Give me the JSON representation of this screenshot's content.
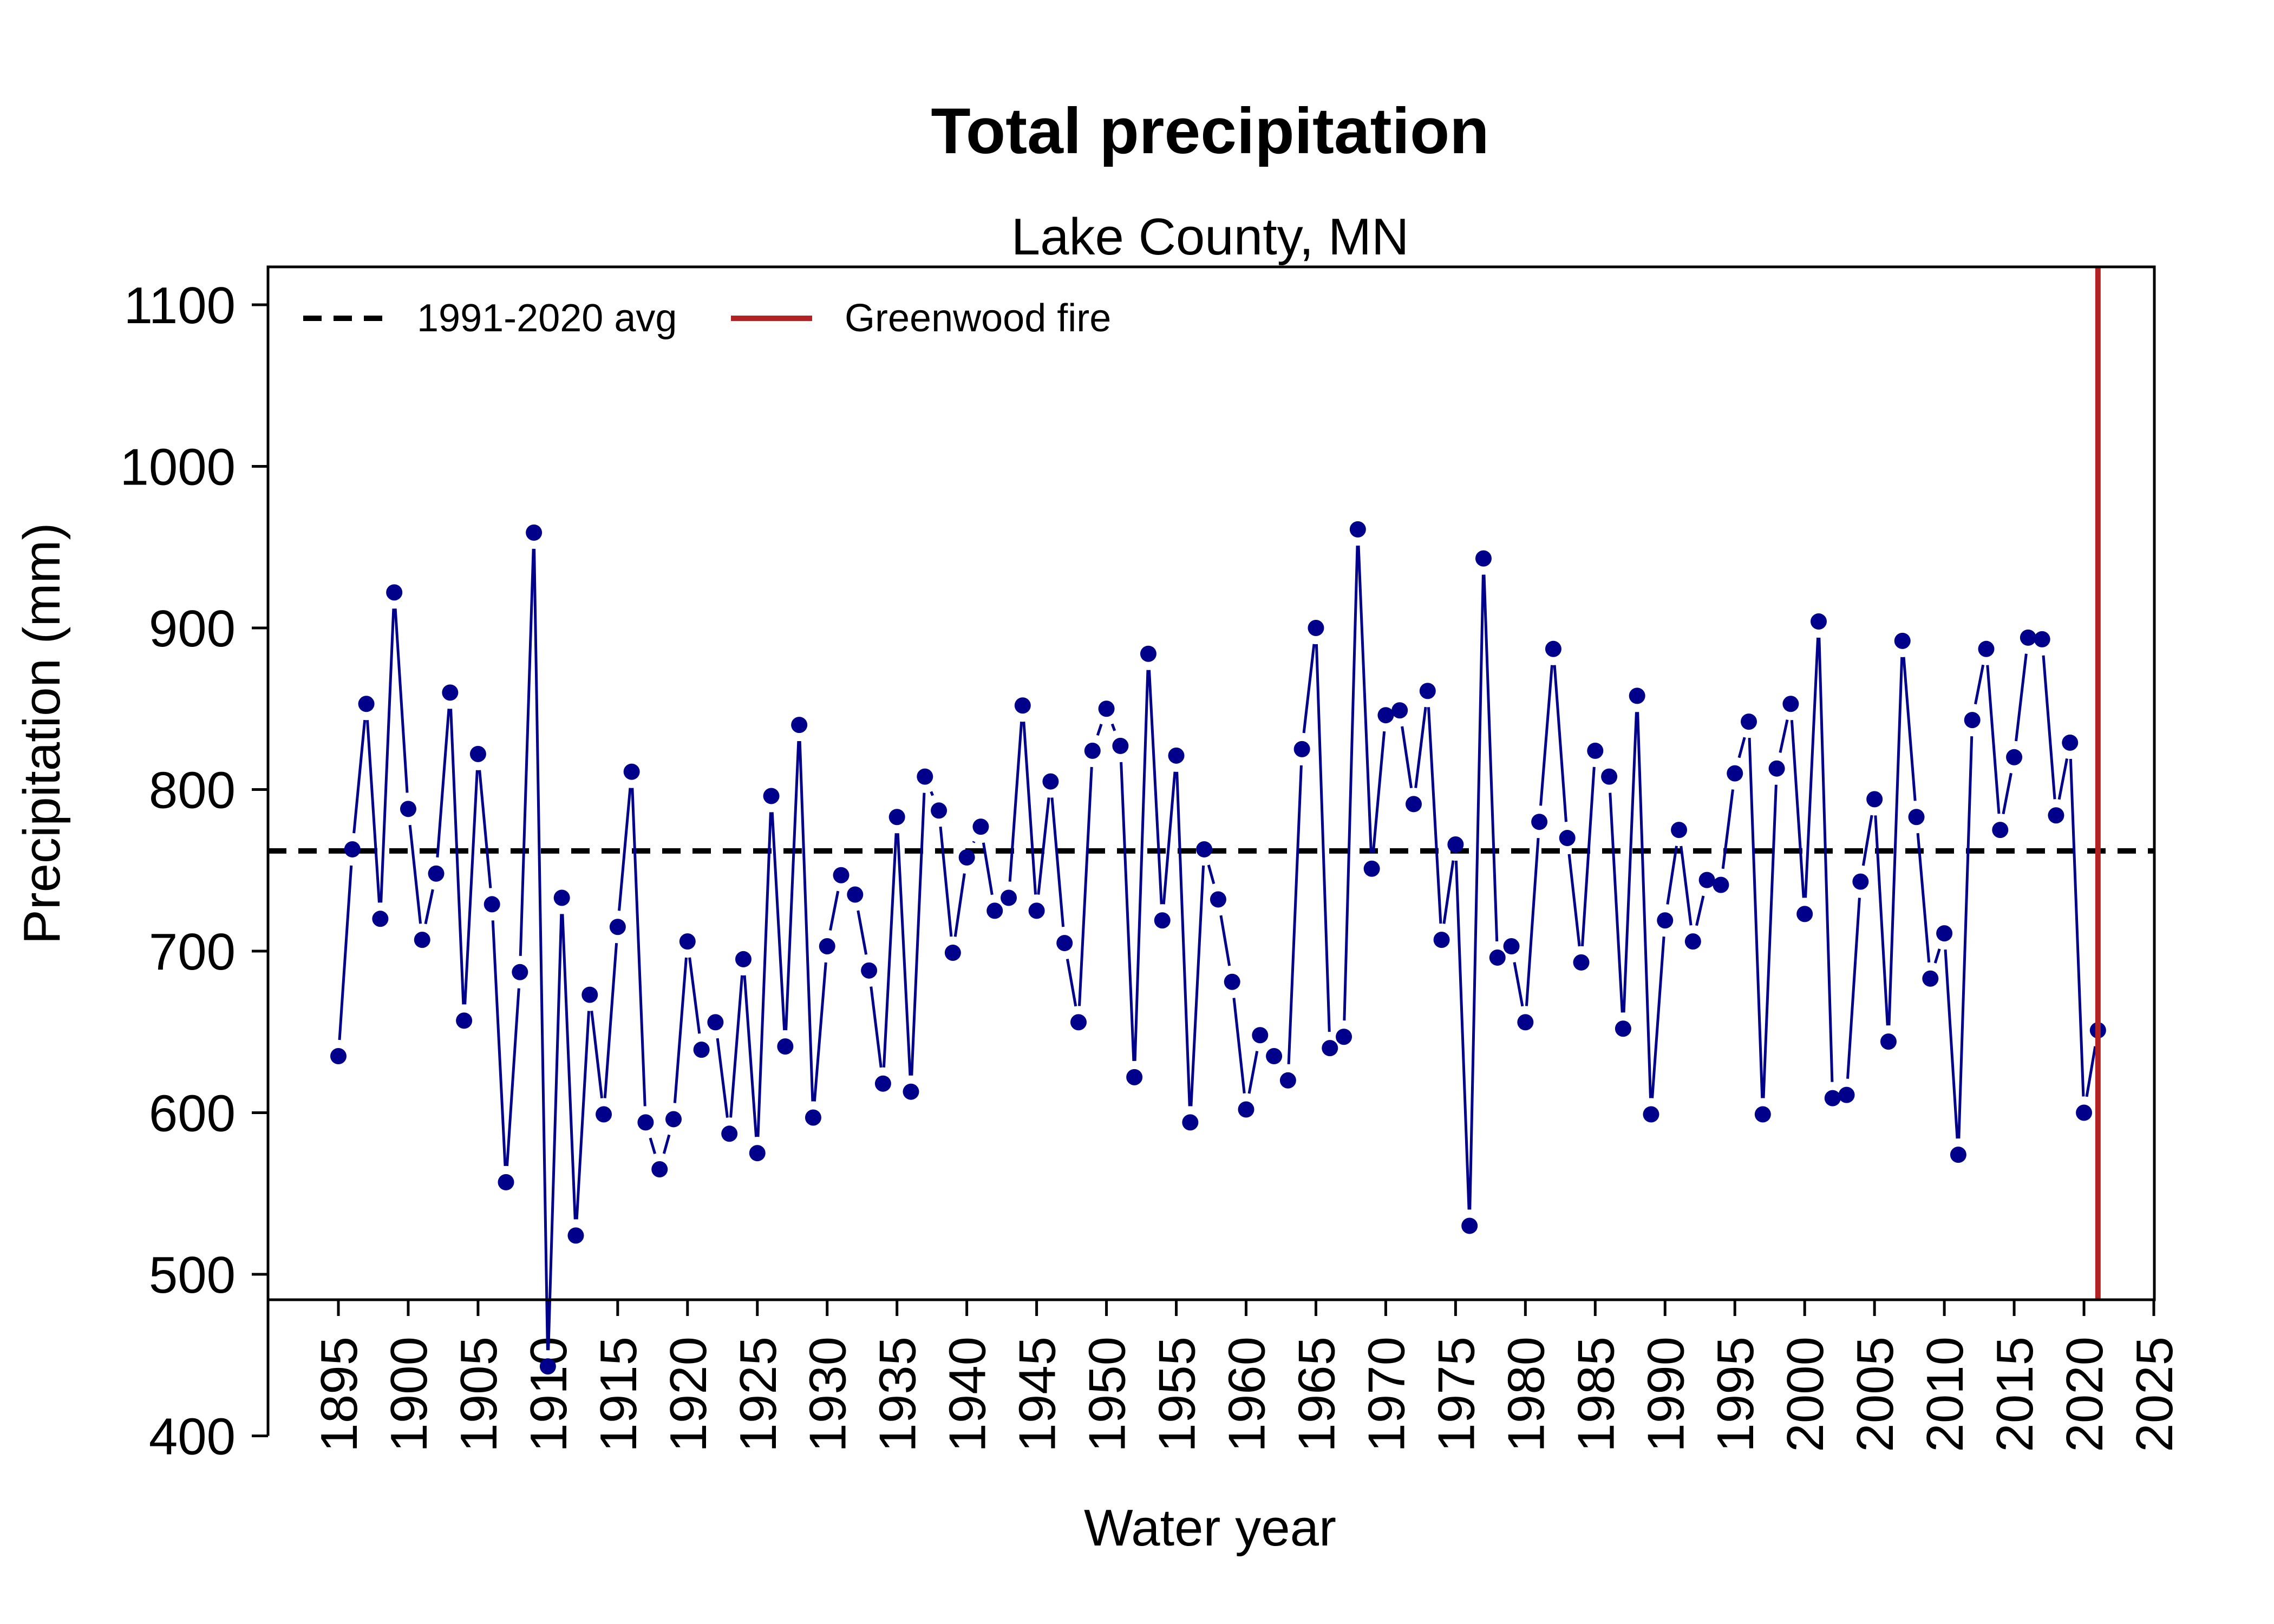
{
  "chart_data": {
    "type": "line",
    "title": "Total precipitation",
    "subtitle": "Lake County, MN",
    "xlabel": "Water year",
    "ylabel": "Precipitation (mm)",
    "xlim": [
      1890,
      2025
    ],
    "ylim": [
      373,
      1128
    ],
    "x_ticks": [
      1895,
      1900,
      1905,
      1910,
      1915,
      1920,
      1925,
      1930,
      1935,
      1940,
      1945,
      1950,
      1955,
      1960,
      1965,
      1970,
      1975,
      1980,
      1985,
      1990,
      1995,
      2000,
      2005,
      2010,
      2015,
      2020,
      2025
    ],
    "y_ticks": [
      400,
      500,
      600,
      700,
      800,
      900,
      1000,
      1100
    ],
    "grid": false,
    "legend_position": "top-left",
    "series": [
      {
        "name": "Precipitation",
        "color": "#00008B",
        "x": [
          1895,
          1896,
          1897,
          1898,
          1899,
          1900,
          1901,
          1902,
          1903,
          1904,
          1905,
          1906,
          1907,
          1908,
          1909,
          1910,
          1911,
          1912,
          1913,
          1914,
          1915,
          1916,
          1917,
          1918,
          1919,
          1920,
          1921,
          1922,
          1923,
          1924,
          1925,
          1926,
          1927,
          1928,
          1929,
          1930,
          1931,
          1932,
          1933,
          1934,
          1935,
          1936,
          1937,
          1938,
          1939,
          1940,
          1941,
          1942,
          1943,
          1944,
          1945,
          1946,
          1947,
          1948,
          1949,
          1950,
          1951,
          1952,
          1953,
          1954,
          1955,
          1956,
          1957,
          1958,
          1959,
          1960,
          1961,
          1962,
          1963,
          1964,
          1965,
          1966,
          1967,
          1968,
          1969,
          1970,
          1971,
          1972,
          1973,
          1974,
          1975,
          1976,
          1977,
          1978,
          1979,
          1980,
          1981,
          1982,
          1983,
          1984,
          1985,
          1986,
          1987,
          1988,
          1989,
          1990,
          1991,
          1992,
          1993,
          1994,
          1995,
          1996,
          1997,
          1998,
          1999,
          2000,
          2001,
          2002,
          2003,
          2004,
          2005,
          2006,
          2007,
          2008,
          2009,
          2010,
          2011,
          2012,
          2013,
          2014,
          2015,
          2016,
          2017,
          2018,
          2019,
          2020,
          2021
        ],
        "values": [
          635,
          763,
          853,
          720,
          922,
          788,
          707,
          748,
          860,
          657,
          822,
          729,
          557,
          687,
          959,
          443,
          733,
          524,
          673,
          599,
          715,
          811,
          594,
          565,
          596,
          706,
          639,
          656,
          587,
          695,
          575,
          796,
          641,
          840,
          597,
          703,
          747,
          735,
          688,
          618,
          783,
          613,
          808,
          787,
          699,
          758,
          777,
          725,
          733,
          852,
          725,
          805,
          705,
          656,
          824,
          850,
          827,
          622,
          884,
          719,
          821,
          594,
          763,
          732,
          681,
          602,
          648,
          635,
          620,
          825,
          900,
          640,
          647,
          961,
          751,
          846,
          849,
          791,
          861,
          707,
          766,
          530,
          943,
          696,
          703,
          656,
          780,
          887,
          770,
          693,
          824,
          808,
          652,
          858,
          599,
          719,
          775,
          706,
          744,
          741,
          810,
          842,
          599,
          813,
          853,
          723,
          904,
          609,
          611,
          743,
          794,
          644,
          892,
          783,
          683,
          711,
          574,
          843,
          887,
          775,
          820,
          894,
          893,
          784,
          829,
          600,
          651
        ]
      }
    ],
    "reference_lines": [
      {
        "name": "1991-2020 avg",
        "orientation": "horizontal",
        "value": 762,
        "color": "#000000",
        "style": "dashed"
      },
      {
        "name": "Greenwood fire",
        "orientation": "vertical",
        "value": 2021,
        "color": "#B22222",
        "style": "solid"
      }
    ]
  }
}
